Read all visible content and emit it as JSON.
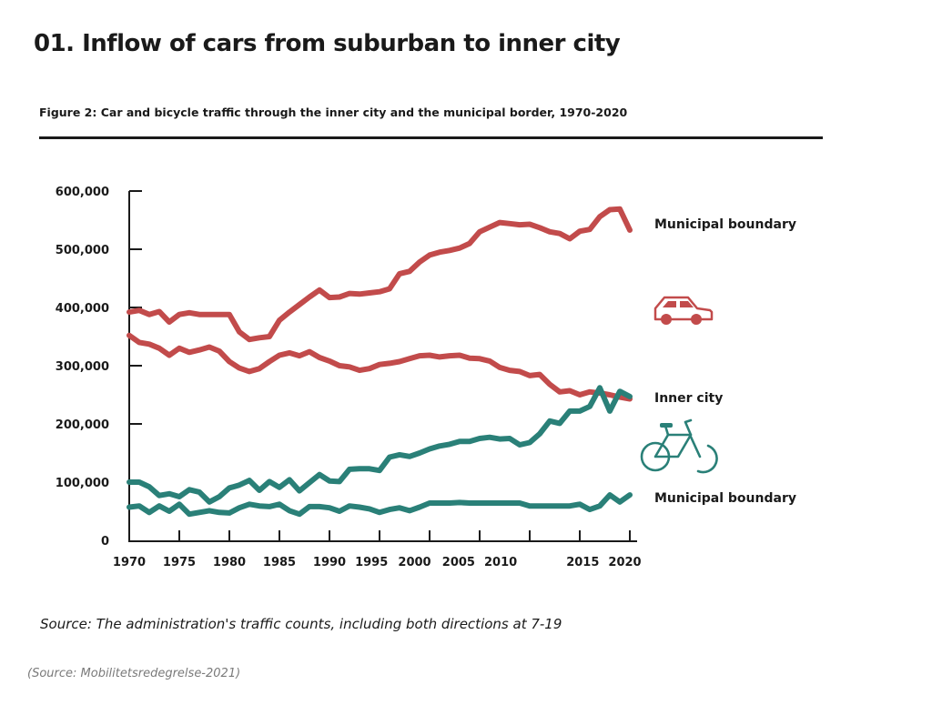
{
  "page": {
    "title": "01. Inflow of cars from suburban to inner city",
    "figure_caption": "Figure 2: Car and bicycle traffic through the inner city and the municipal border, 1970-2020",
    "source_note": "Source: The administration's traffic counts, including both directions at 7-19",
    "source_origin": "(Source: Mobilitetsredegrelse-2021)"
  },
  "colors": {
    "car": "#c24b4b",
    "bicycle": "#2a8078",
    "axis": "#1a1a1a"
  },
  "icons": {
    "car": "car-icon",
    "bicycle": "bicycle-icon"
  },
  "chart_data": {
    "type": "line",
    "title": "Figure 2: Car and bicycle traffic through the inner city and the municipal border, 1970-2020",
    "xlabel": "",
    "ylabel": "",
    "ylim": [
      0,
      600000
    ],
    "xlim": [
      1970,
      2020
    ],
    "grid": false,
    "legend": "right (direct labels)",
    "yticks": [
      0,
      100000,
      200000,
      300000,
      400000,
      500000,
      600000
    ],
    "ytick_labels": [
      "0",
      "100,000",
      "200,000",
      "300,000",
      "400,000",
      "500,000",
      "600,000"
    ],
    "xticks": [
      1970,
      1975,
      1980,
      1985,
      1990,
      1995,
      2000,
      2005,
      2010,
      2015,
      2020
    ],
    "xtick_labels": [
      {
        "text": "1970",
        "year": 1970
      },
      {
        "text": "1975",
        "year": 1975
      },
      {
        "text": "1980",
        "year": 1980
      },
      {
        "text": "1985",
        "year": 1985
      },
      {
        "text": "1990",
        "year": 1990
      },
      {
        "text": "1995",
        "year": 1994.2
      },
      {
        "text": "2000",
        "year": 1998.5
      },
      {
        "text": "2005",
        "year": 2002.9
      },
      {
        "text": "2010",
        "year": 2007.1
      },
      {
        "text": "2015",
        "year": 2015.3
      },
      {
        "text": "2020",
        "year": 2019.5
      }
    ],
    "x": [
      1970,
      1971,
      1972,
      1973,
      1974,
      1975,
      1976,
      1977,
      1978,
      1979,
      1980,
      1981,
      1982,
      1983,
      1984,
      1985,
      1986,
      1987,
      1988,
      1989,
      1990,
      1991,
      1992,
      1993,
      1994,
      1995,
      1996,
      1997,
      1998,
      1999,
      2000,
      2001,
      2002,
      2003,
      2004,
      2005,
      2006,
      2007,
      2008,
      2009,
      2010,
      2011,
      2012,
      2013,
      2014,
      2015,
      2016,
      2017,
      2018,
      2019,
      2020
    ],
    "series": [
      {
        "name": "Cars – Municipal boundary",
        "mode": "car",
        "label": "Municipal boundary",
        "values": [
          392000,
          395000,
          388000,
          393000,
          375000,
          388000,
          391000,
          388000,
          388000,
          388000,
          388000,
          358000,
          345000,
          348000,
          350000,
          378000,
          392000,
          405000,
          418000,
          430000,
          417000,
          418000,
          424000,
          423000,
          425000,
          427000,
          432000,
          458000,
          462000,
          478000,
          490000,
          495000,
          498000,
          502000,
          510000,
          530000,
          538000,
          546000,
          544000,
          542000,
          543000,
          537000,
          530000,
          527000,
          518000,
          531000,
          534000,
          556000,
          568000,
          569000,
          533000
        ]
      },
      {
        "name": "Cars – Inner city",
        "mode": "car",
        "label": "Inner city",
        "values": [
          352000,
          340000,
          337000,
          330000,
          318000,
          330000,
          323000,
          327000,
          332000,
          325000,
          307000,
          296000,
          290000,
          295000,
          307000,
          318000,
          322000,
          317000,
          324000,
          314000,
          308000,
          300000,
          298000,
          292000,
          295000,
          302000,
          304000,
          307000,
          312000,
          317000,
          318000,
          315000,
          317000,
          318000,
          313000,
          312000,
          308000,
          297000,
          292000,
          290000,
          283000,
          285000,
          268000,
          255000,
          257000,
          250000,
          255000,
          253000,
          250000,
          246000,
          243000
        ]
      },
      {
        "name": "Bicycles – Inner city",
        "mode": "bicycle",
        "label": "Inner city",
        "values": [
          100000,
          100000,
          92000,
          77000,
          80000,
          75000,
          87000,
          83000,
          66000,
          75000,
          90000,
          95000,
          103000,
          86000,
          101000,
          91000,
          104000,
          85000,
          99000,
          113000,
          102000,
          101000,
          122000,
          123000,
          123000,
          120000,
          143000,
          147000,
          144000,
          150000,
          157000,
          162000,
          165000,
          170000,
          170000,
          175000,
          177000,
          174000,
          175000,
          164000,
          168000,
          183000,
          205000,
          201000,
          222000,
          222000,
          230000,
          262000,
          222000,
          256000,
          247000
        ]
      },
      {
        "name": "Bicycles – Municipal boundary",
        "mode": "bicycle",
        "label": "Municipal boundary",
        "values": [
          57000,
          59000,
          48000,
          59000,
          50000,
          62000,
          45000,
          48000,
          51000,
          48000,
          47000,
          56000,
          62000,
          59000,
          58000,
          62000,
          51000,
          45000,
          58000,
          58000,
          56000,
          50000,
          59000,
          57000,
          54000,
          48000,
          53000,
          56000,
          51000,
          57000,
          64000,
          64000,
          64000,
          65000,
          64000,
          64000,
          64000,
          64000,
          64000,
          64000,
          59000,
          59000,
          59000,
          59000,
          59000,
          62000,
          53000,
          59000,
          78000,
          66000,
          78000
        ]
      }
    ],
    "annotations": [
      {
        "text": "Municipal boundary",
        "applies_to": "Cars – Municipal boundary"
      },
      {
        "text": "Inner city",
        "applies_to": "Cars – Inner city / Bicycles – Inner city"
      },
      {
        "text": "Municipal boundary",
        "applies_to": "Bicycles – Municipal boundary"
      }
    ]
  }
}
